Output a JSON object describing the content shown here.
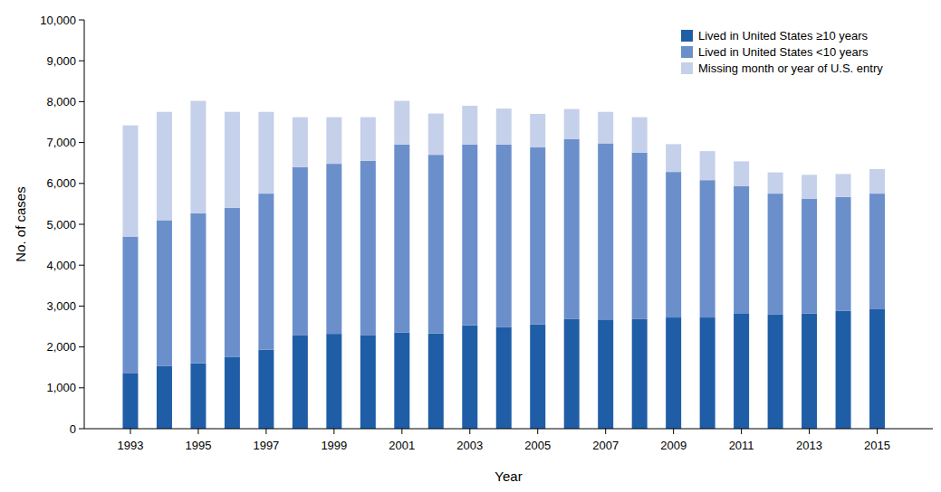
{
  "chart_data": {
    "type": "bar",
    "stacked": true,
    "legend": "top-right",
    "grid": false,
    "x_label": "Year",
    "y_label": "No. of cases",
    "categories": [
      "1993",
      null,
      "1995",
      null,
      "1997",
      null,
      "1999",
      null,
      "2001",
      null,
      "2003",
      null,
      "2005",
      null,
      "2007",
      null,
      "2009",
      null,
      "2011",
      null,
      "2013",
      null,
      "2015"
    ],
    "ylim": [
      0,
      10000
    ],
    "yticks": [
      0,
      {
        "value": 1000,
        "label": "1,000"
      },
      {
        "value": 2000,
        "label": "2,000"
      },
      {
        "value": 3000,
        "label": "3,000"
      },
      {
        "value": 4000,
        "label": "4,000"
      },
      {
        "value": 5000,
        "label": "5,000"
      },
      {
        "value": 6000,
        "label": "6,000"
      },
      {
        "value": 7000,
        "label": "7,000"
      },
      {
        "value": 8000,
        "label": "8,000"
      },
      {
        "value": 9000,
        "label": "9,000"
      },
      {
        "value": 10000,
        "label": "10,000"
      }
    ],
    "series": [
      {
        "name": "Lived in United States ≥10 years",
        "color": "#1f5ea6",
        "values": [
          1350,
          1530,
          1600,
          1750,
          1930,
          2280,
          2320,
          2280,
          2350,
          2330,
          2530,
          2490,
          2550,
          2680,
          2670,
          2680,
          2720,
          2720,
          2810,
          2790,
          2820,
          2880,
          2920
        ]
      },
      {
        "name": "Lived in United States <10 years",
        "color": "#6b8fcb",
        "values": [
          3350,
          3570,
          3670,
          3650,
          3820,
          4120,
          4160,
          4270,
          4600,
          4370,
          4420,
          4460,
          4330,
          4400,
          4310,
          4070,
          3560,
          3360,
          3120,
          2960,
          2800,
          2790,
          2830
        ]
      },
      {
        "name": "Missing month or year of U.S. entry",
        "color": "#c5d0ea",
        "values": [
          2720,
          2650,
          2750,
          2350,
          2000,
          1220,
          1140,
          1070,
          1070,
          1010,
          950,
          880,
          820,
          740,
          770,
          870,
          680,
          710,
          610,
          520,
          590,
          560,
          600
        ]
      }
    ]
  }
}
